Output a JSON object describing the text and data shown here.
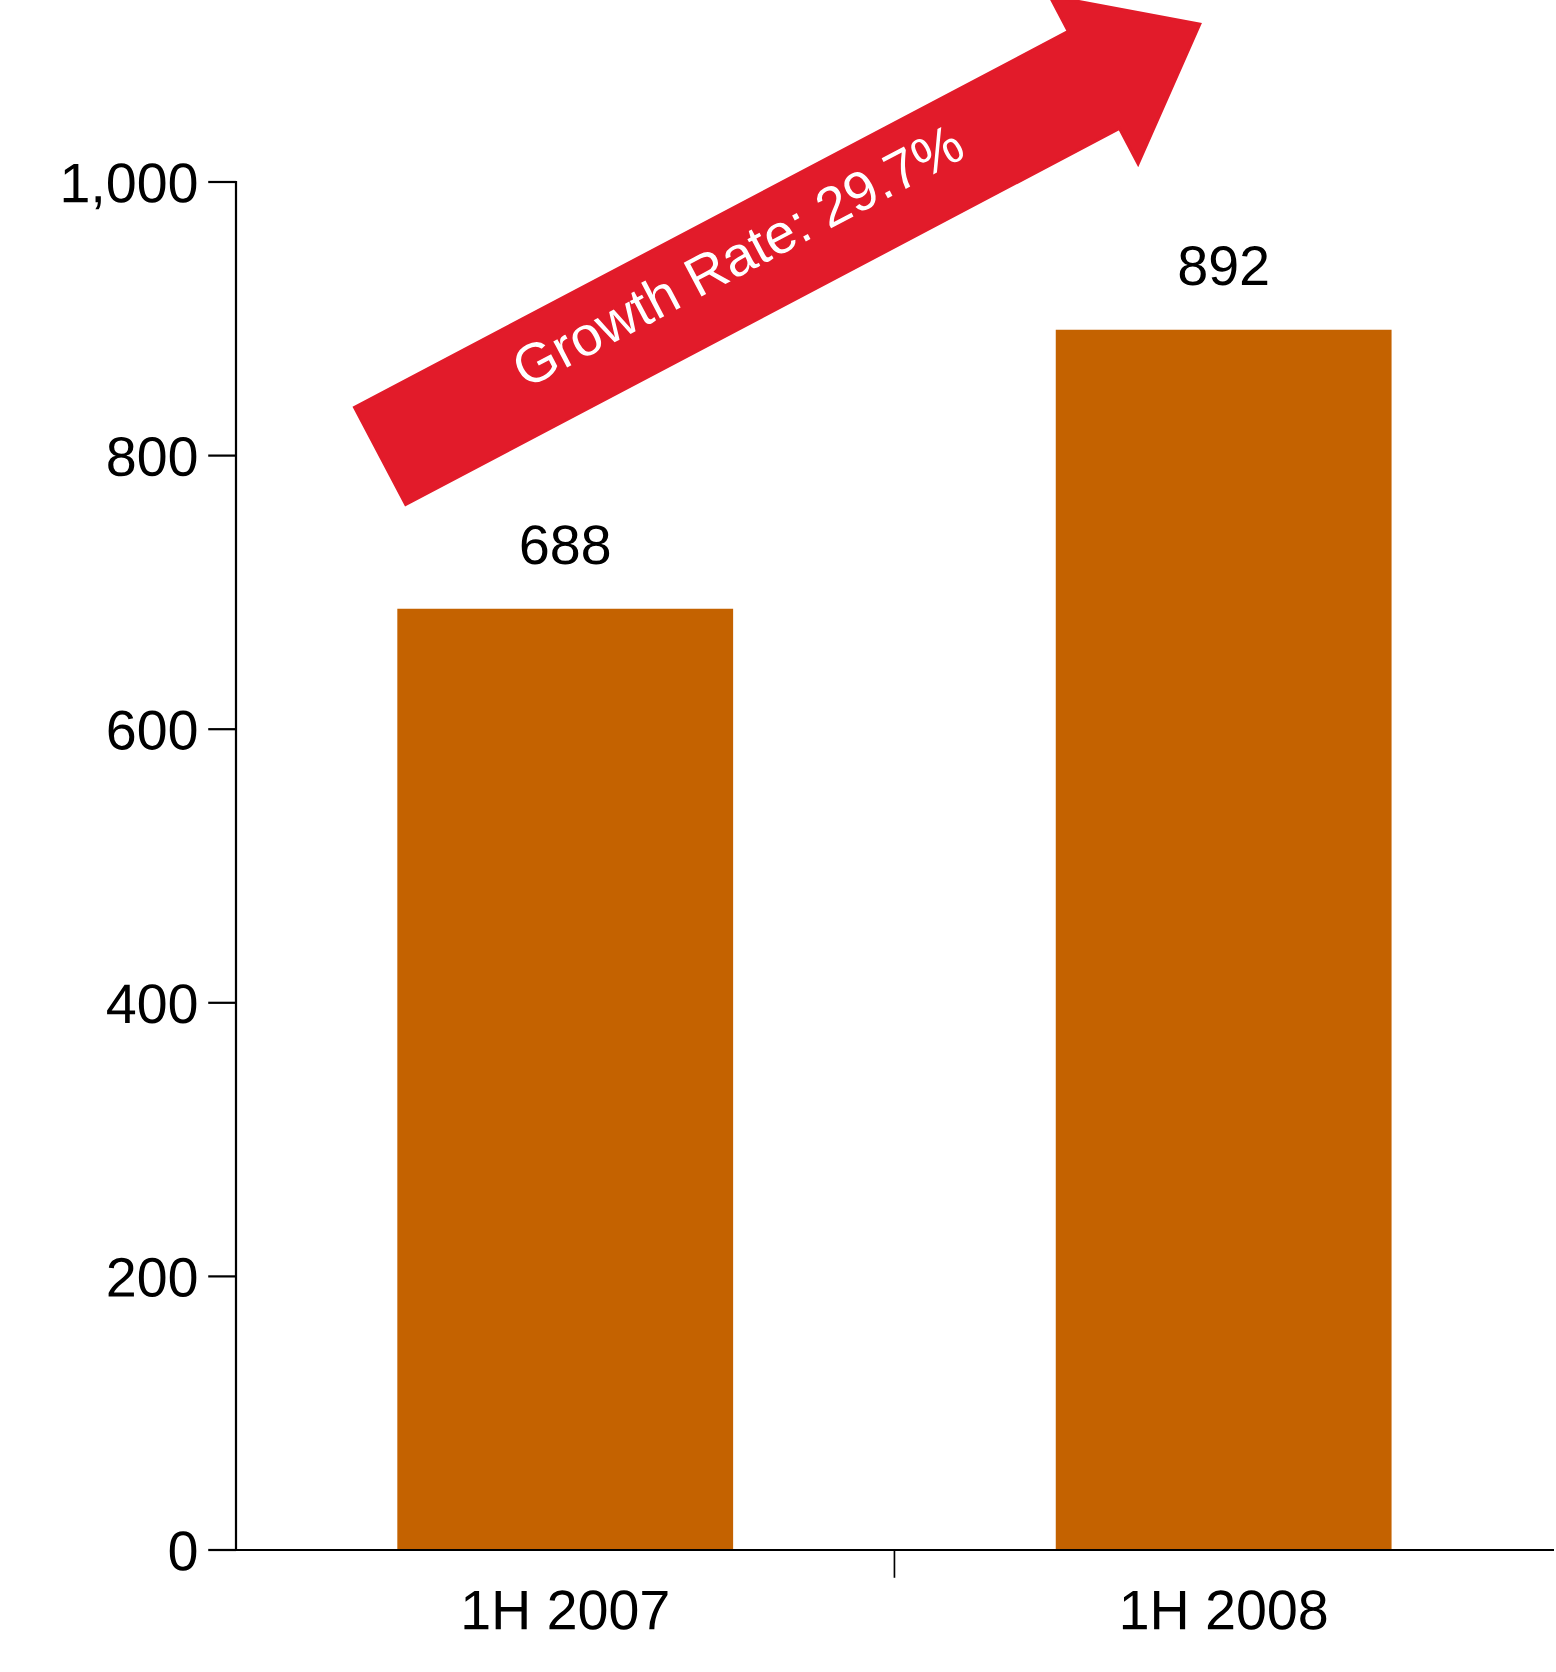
{
  "chart_data": {
    "type": "bar",
    "categories": [
      "1H 2007",
      "1H 2008"
    ],
    "values": [
      688,
      892
    ],
    "color": "#c46200",
    "ylim": [
      0,
      1000
    ],
    "yticks": [
      0,
      200,
      400,
      600,
      800,
      {
        "value": 1000,
        "label": "1,000"
      }
    ],
    "data_labels": true,
    "grid": false,
    "annotations": [
      "Growth Rate: 29.7%"
    ]
  }
}
